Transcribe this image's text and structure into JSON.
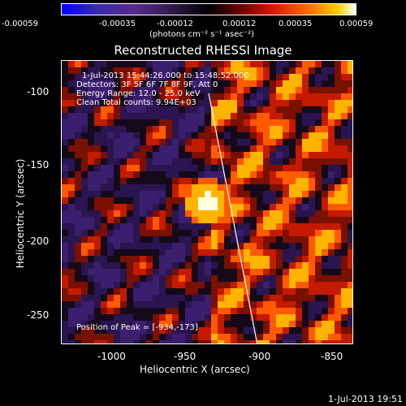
{
  "colorbar": {
    "tick_labels": [
      "-0.00059",
      "-0.00035",
      "-0.00012",
      "0.00012",
      "0.00035",
      "0.00059"
    ],
    "units": "(photons cm⁻² s⁻¹ asec⁻²)"
  },
  "title": "Reconstructed RHESSI Image",
  "annotations": {
    "time": "1-Jul-2013 15:44:26.000 to 15:48:52.000",
    "detectors": "Detectors: 3F 5F 6F 7F 8F 9F, Att 0",
    "energy": "Energy Range: 12.0 - 25.0 keV",
    "clean": "Clean     Total counts: 9.94E+03",
    "peak": "Position of Peak = [-934,-173]"
  },
  "axes": {
    "x_label": "Heliocentric X (arcsec)",
    "y_label": "Heliocentric Y (arcsec)",
    "x_ticks": [
      "-1000",
      "-950",
      "-900",
      "-850"
    ],
    "y_ticks": [
      "-100",
      "-150",
      "-200",
      "-250"
    ]
  },
  "footer": "1-Jul-2013 19:51"
}
